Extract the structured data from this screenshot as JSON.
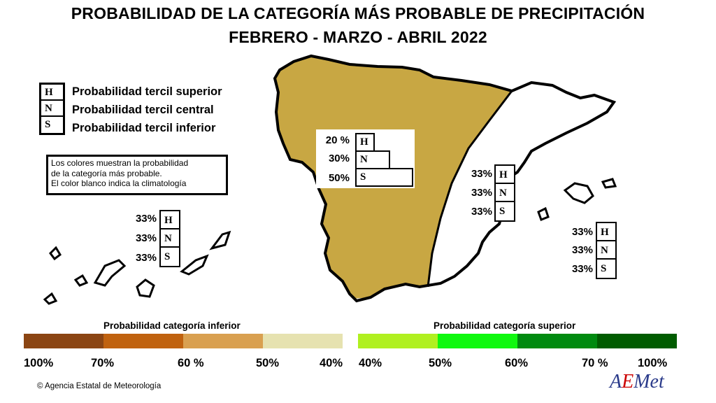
{
  "title": {
    "line1": "PROBABILIDAD DE LA CATEGORÍA MÁS PROBABLE DE PRECIPITACIÓN",
    "line2": "FEBRERO - MARZO - ABRIL 2022"
  },
  "legend": {
    "items": [
      {
        "letter": "H",
        "label": "Probabilidad  tercil superior"
      },
      {
        "letter": "N",
        "label": "Probabilidad  tercil central"
      },
      {
        "letter": "S",
        "label": "Probabilidad  tercil inferior"
      }
    ],
    "note": [
      "Los colores muestran la probabilidad",
      "de la categoría más probable.",
      "El color blanco indica la climatología"
    ]
  },
  "regions": {
    "west": {
      "fill": "#c8a743",
      "H": "20 %",
      "N": "30%",
      "S": "50%",
      "values": {
        "H": 20,
        "N": 30,
        "S": 50
      }
    },
    "east": {
      "fill": "#ffffff",
      "H": "33%",
      "N": "33%",
      "S": "33%"
    },
    "balearic": {
      "fill": "#ffffff",
      "H": "33%",
      "N": "33%",
      "S": "33%"
    },
    "canary": {
      "fill": "#ffffff",
      "H": "33%",
      "N": "33%",
      "S": "33%"
    }
  },
  "colorbars": {
    "inferior": {
      "title": "Probabilidad categoría inferior",
      "colors": [
        "#8b4513",
        "#c0620f",
        "#d9a050",
        "#e6e2b0"
      ],
      "ticks": [
        "100%",
        "70%",
        "60 %",
        "50%",
        "40%"
      ]
    },
    "superior": {
      "title": "Probabilidad categoría superior",
      "colors": [
        "#b0f020",
        "#10f810",
        "#008a10",
        "#005c00"
      ],
      "ticks": [
        "40%",
        "50%",
        "60%",
        "70 %",
        "100%"
      ]
    }
  },
  "footer": {
    "credit": "© Agencia Estatal de Meteorología",
    "logo": "AEMet"
  }
}
